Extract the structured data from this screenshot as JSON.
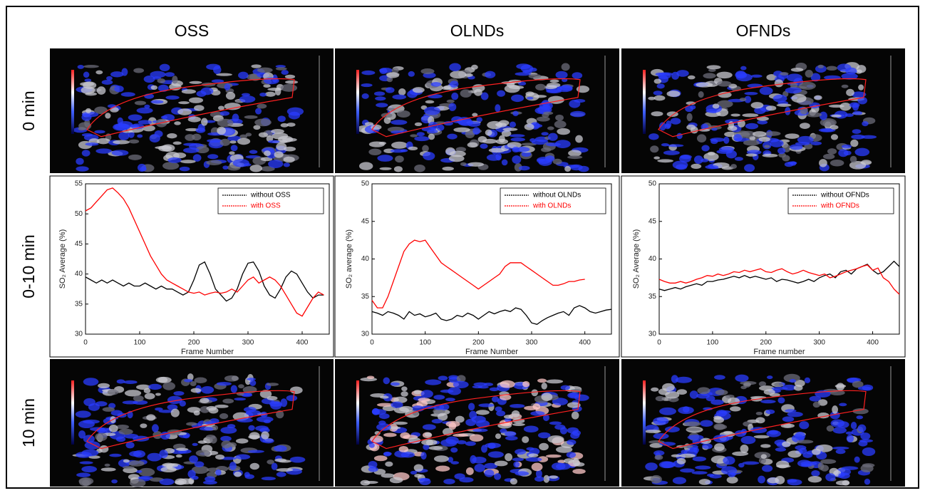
{
  "columns": [
    "OSS",
    "OLNDs",
    "OFNDs"
  ],
  "rows": [
    "0 min",
    "0-10 min",
    "10 min"
  ],
  "chart_data": [
    {
      "type": "line",
      "xlabel": "Frame Number",
      "ylabel": "SO₂ Average (%)",
      "xlim": [
        0,
        450
      ],
      "xticks": [
        0,
        100,
        200,
        300,
        400
      ],
      "ylim": [
        30,
        55
      ],
      "yticks": [
        30,
        35,
        40,
        45,
        50,
        55
      ],
      "legend": "upper right",
      "x": [
        0,
        10,
        20,
        30,
        40,
        50,
        60,
        70,
        80,
        90,
        100,
        110,
        120,
        130,
        140,
        150,
        160,
        170,
        180,
        190,
        200,
        210,
        220,
        230,
        240,
        250,
        260,
        270,
        280,
        290,
        300,
        310,
        320,
        330,
        340,
        350,
        360,
        370,
        380,
        390,
        400,
        410,
        420,
        430,
        440
      ],
      "series": [
        {
          "name": "without OSS",
          "color": "#000000",
          "values": [
            39.5,
            39,
            38.5,
            39,
            38.5,
            39,
            38.5,
            38,
            38.5,
            38,
            38,
            38.5,
            38,
            37.5,
            38,
            37.5,
            37.5,
            37,
            36.5,
            37,
            39,
            41.5,
            42,
            40,
            37.5,
            36.5,
            35.5,
            36,
            37.5,
            40,
            41.8,
            42,
            40.5,
            38,
            36.5,
            36,
            37.5,
            39.5,
            40.5,
            40,
            38.5,
            37,
            36,
            36.5,
            36.5
          ]
        },
        {
          "name": "with OSS",
          "color": "#ff0000",
          "values": [
            50.5,
            51,
            52,
            53,
            54,
            54.3,
            53.5,
            52.5,
            51,
            49,
            47,
            45,
            43,
            41.5,
            40,
            39,
            38.5,
            38,
            37.5,
            37,
            36.8,
            37,
            36.5,
            36.8,
            37,
            36.8,
            37,
            37.5,
            37,
            38,
            39,
            39.5,
            38.5,
            39,
            39.5,
            39,
            38,
            36.5,
            35,
            33.5,
            33,
            34.5,
            36,
            37,
            36.5
          ]
        }
      ]
    },
    {
      "type": "line",
      "xlabel": "Frame Number",
      "ylabel": "SO₂ average (%)",
      "xlim": [
        0,
        450
      ],
      "xticks": [
        0,
        100,
        200,
        300,
        400
      ],
      "ylim": [
        30,
        50
      ],
      "yticks": [
        30,
        35,
        40,
        45,
        50
      ],
      "legend": "upper right",
      "x": [
        0,
        10,
        20,
        30,
        40,
        50,
        60,
        70,
        80,
        90,
        100,
        110,
        120,
        130,
        140,
        150,
        160,
        170,
        180,
        190,
        200,
        210,
        220,
        230,
        240,
        250,
        260,
        270,
        280,
        290,
        300,
        310,
        320,
        330,
        340,
        350,
        360,
        370,
        380,
        390,
        400,
        410,
        420,
        430,
        440,
        450
      ],
      "series": [
        {
          "name": "without OLNDs",
          "color": "#000000",
          "values": [
            33,
            32.8,
            32.5,
            33,
            32.8,
            32.5,
            32,
            33,
            32.5,
            32.7,
            32.3,
            32.5,
            32.8,
            32,
            31.8,
            32,
            32.5,
            32.3,
            32.8,
            32.5,
            32,
            32.5,
            33,
            32.7,
            33,
            33.2,
            33,
            33.5,
            33.3,
            32.5,
            31.5,
            31.3,
            31.8,
            32.2,
            32.5,
            32.8,
            33,
            32.5,
            33.5,
            33.8,
            33.5,
            33,
            32.8,
            33,
            33.2,
            33.3
          ]
        },
        {
          "name": "with OLNDs",
          "color": "#ff0000",
          "values": [
            34.5,
            33.5,
            33.5,
            35,
            37,
            39,
            41,
            42,
            42.5,
            42.3,
            42.5,
            41.5,
            40.5,
            39.5,
            39,
            38.5,
            38,
            37.5,
            37,
            36.5,
            36,
            36.5,
            37,
            37.5,
            38,
            39,
            39.5,
            39.5,
            39.5,
            39,
            38.5,
            38,
            37.5,
            37,
            36.5,
            36.5,
            36.7,
            37,
            37,
            37.2,
            37.3,
            null,
            null,
            null,
            null,
            null
          ]
        }
      ]
    },
    {
      "type": "line",
      "xlabel": "Frame number",
      "ylabel": "SO₂ Average (%)",
      "xlim": [
        0,
        450
      ],
      "xticks": [
        0,
        100,
        200,
        300,
        400
      ],
      "ylim": [
        30,
        50
      ],
      "yticks": [
        30,
        35,
        40,
        45,
        50
      ],
      "legend": "upper right",
      "x": [
        0,
        10,
        20,
        30,
        40,
        50,
        60,
        70,
        80,
        90,
        100,
        110,
        120,
        130,
        140,
        150,
        160,
        170,
        180,
        190,
        200,
        210,
        220,
        230,
        240,
        250,
        260,
        270,
        280,
        290,
        300,
        310,
        320,
        330,
        340,
        350,
        360,
        370,
        380,
        390,
        400,
        410,
        420,
        430,
        440,
        450
      ],
      "series": [
        {
          "name": "without OFNDs",
          "color": "#000000",
          "values": [
            36,
            35.8,
            36,
            36.2,
            36,
            36.3,
            36.5,
            36.7,
            36.5,
            37,
            37,
            37.2,
            37.3,
            37.5,
            37.7,
            37.5,
            37.8,
            37.5,
            37.7,
            37.5,
            37.3,
            37.5,
            37,
            37.3,
            37.2,
            37,
            36.8,
            37,
            37.3,
            37,
            37.5,
            37.8,
            38,
            37.5,
            38.3,
            38.5,
            38,
            38.7,
            39,
            39.3,
            38.5,
            38,
            38.3,
            39,
            39.7,
            39
          ]
        },
        {
          "name": "with OFNDs",
          "color": "#ff0000",
          "values": [
            37.3,
            37,
            36.8,
            36.8,
            37,
            36.8,
            37,
            37.3,
            37.5,
            37.8,
            37.7,
            38,
            37.8,
            38,
            38.3,
            38.2,
            38.5,
            38.3,
            38.5,
            38.7,
            38.3,
            38.2,
            38.5,
            38.7,
            38.3,
            38,
            38.2,
            38.5,
            38.2,
            38,
            37.8,
            38,
            37.5,
            37.7,
            38,
            38.3,
            38.5,
            38.7,
            39,
            39.2,
            38.5,
            38.8,
            37.5,
            37,
            36,
            35.3
          ]
        }
      ]
    }
  ]
}
